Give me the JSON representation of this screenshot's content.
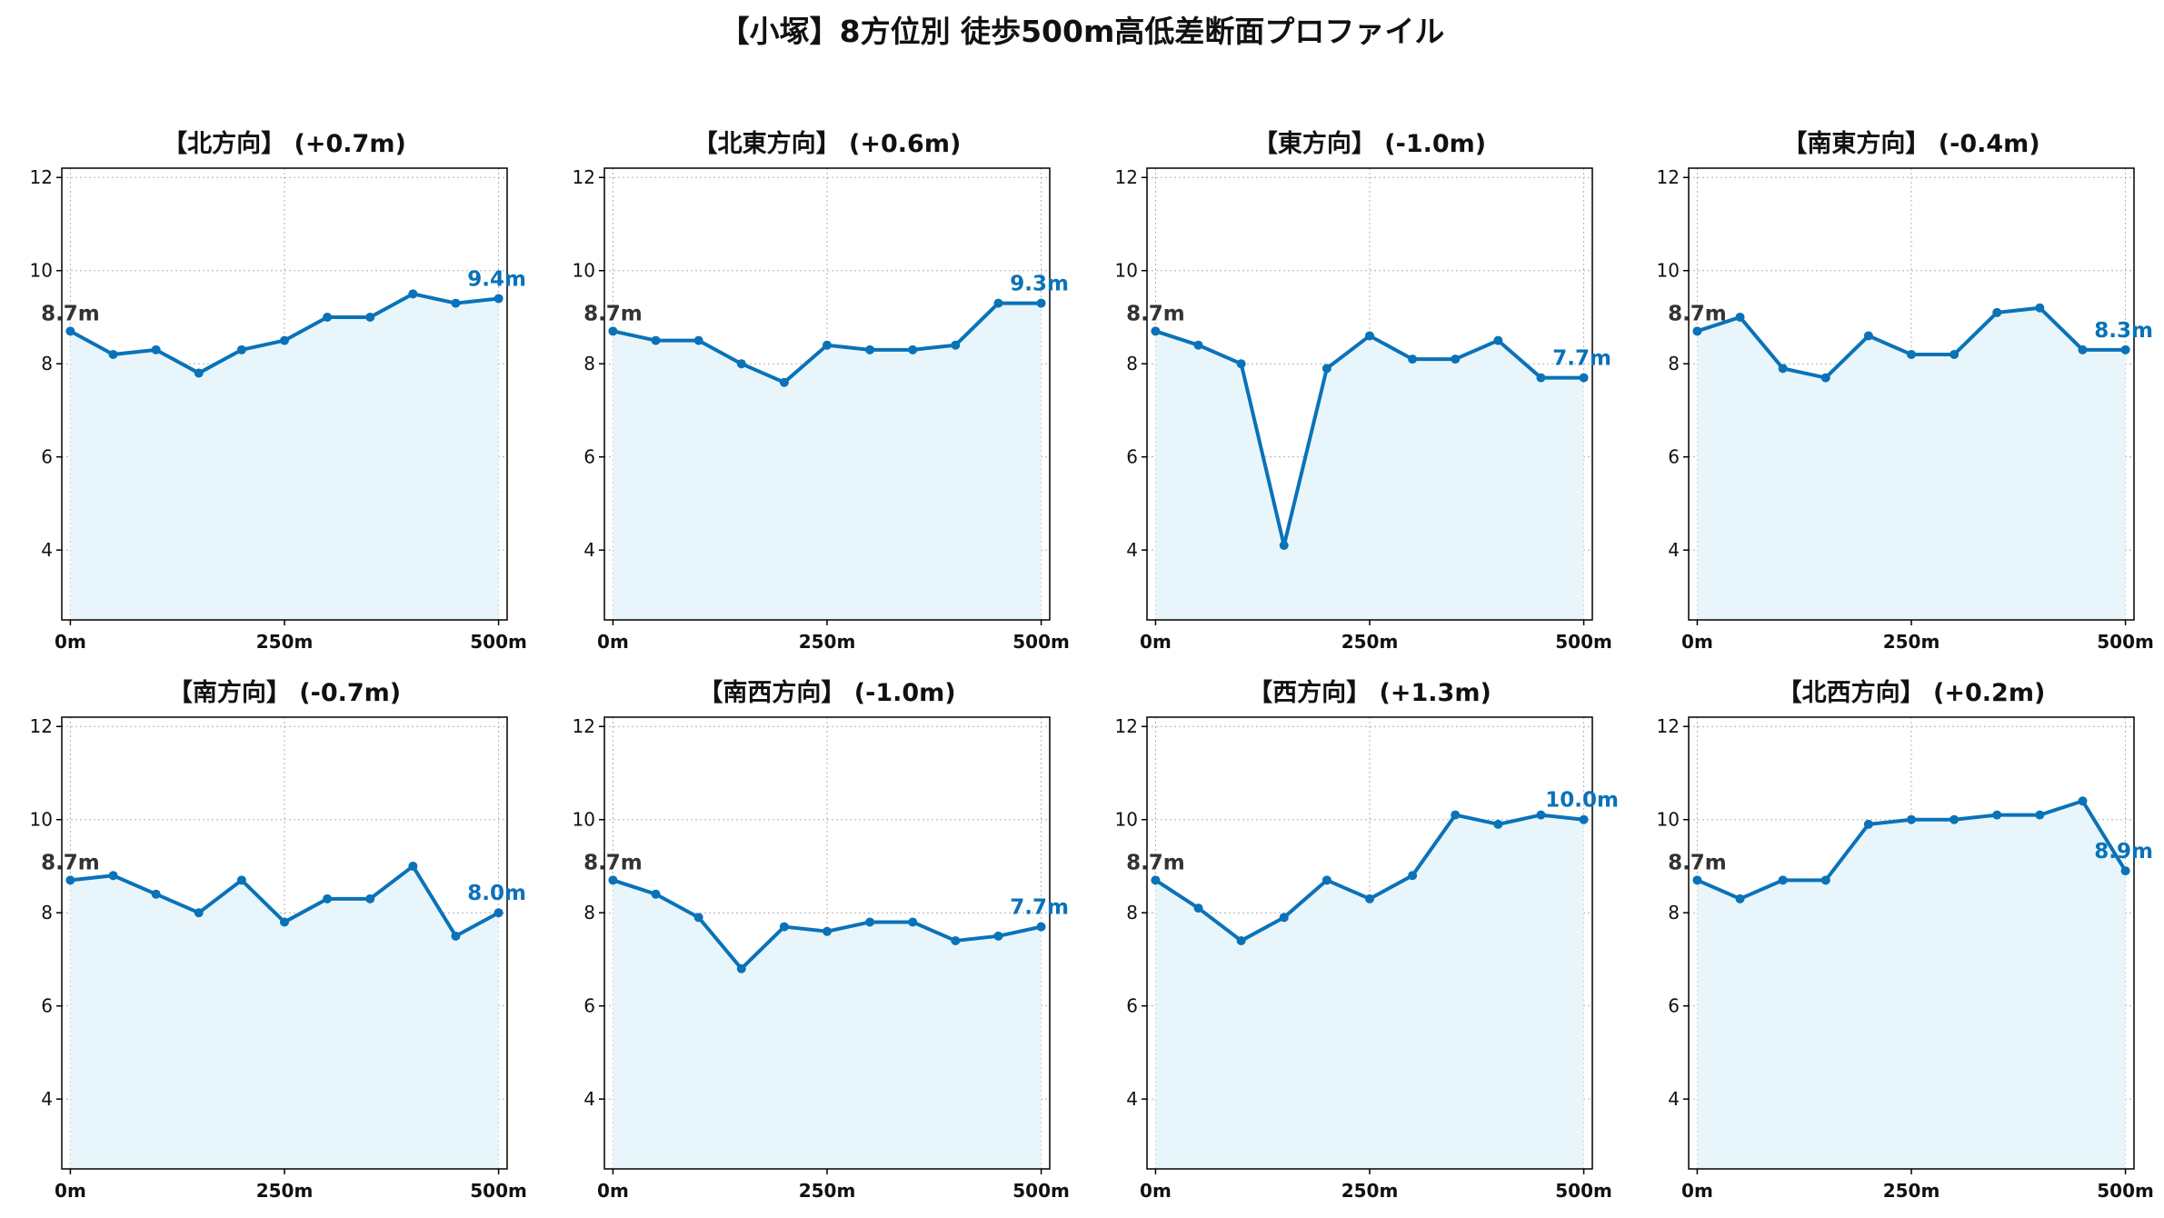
{
  "title": "【小塚】8方位別 徒歩500m高低差断面プロファイル",
  "colors": {
    "line": "#0a72b8",
    "fill": "#e8f6fb",
    "start_label": "#333333",
    "end_label": "#0a72b8",
    "grid": "#b0b0b0",
    "axis": "#000000"
  },
  "chart_data": [
    {
      "type": "area",
      "title": "【北方向】 (+0.7m)",
      "x": [
        0,
        50,
        100,
        150,
        200,
        250,
        300,
        350,
        400,
        450,
        500
      ],
      "y": [
        8.7,
        8.2,
        8.3,
        7.8,
        8.3,
        8.5,
        9.0,
        9.0,
        9.5,
        9.3,
        9.4
      ],
      "start_label": "8.7m",
      "end_label": "9.4m",
      "xticks": [
        0,
        250,
        500
      ],
      "xtick_labels": [
        "0m",
        "250m",
        "500m"
      ],
      "yticks": [
        4,
        6,
        8,
        10,
        12
      ],
      "ylim": [
        2.5,
        12.2
      ],
      "grid": true
    },
    {
      "type": "area",
      "title": "【北東方向】 (+0.6m)",
      "x": [
        0,
        50,
        100,
        150,
        200,
        250,
        300,
        350,
        400,
        450,
        500
      ],
      "y": [
        8.7,
        8.5,
        8.5,
        8.0,
        7.6,
        8.4,
        8.3,
        8.3,
        8.4,
        9.3,
        9.3
      ],
      "start_label": "8.7m",
      "end_label": "9.3m",
      "xticks": [
        0,
        250,
        500
      ],
      "xtick_labels": [
        "0m",
        "250m",
        "500m"
      ],
      "yticks": [
        4,
        6,
        8,
        10,
        12
      ],
      "ylim": [
        2.5,
        12.2
      ],
      "grid": true
    },
    {
      "type": "area",
      "title": "【東方向】 (-1.0m)",
      "x": [
        0,
        50,
        100,
        150,
        200,
        250,
        300,
        350,
        400,
        450,
        500
      ],
      "y": [
        8.7,
        8.4,
        8.0,
        4.1,
        7.9,
        8.6,
        8.1,
        8.1,
        8.5,
        7.7,
        7.7
      ],
      "start_label": "8.7m",
      "end_label": "7.7m",
      "xticks": [
        0,
        250,
        500
      ],
      "xtick_labels": [
        "0m",
        "250m",
        "500m"
      ],
      "yticks": [
        4,
        6,
        8,
        10,
        12
      ],
      "ylim": [
        2.5,
        12.2
      ],
      "grid": true
    },
    {
      "type": "area",
      "title": "【南東方向】 (-0.4m)",
      "x": [
        0,
        50,
        100,
        150,
        200,
        250,
        300,
        350,
        400,
        450,
        500
      ],
      "y": [
        8.7,
        9.0,
        7.9,
        7.7,
        8.6,
        8.2,
        8.2,
        9.1,
        9.2,
        8.3,
        8.3
      ],
      "start_label": "8.7m",
      "end_label": "8.3m",
      "xticks": [
        0,
        250,
        500
      ],
      "xtick_labels": [
        "0m",
        "250m",
        "500m"
      ],
      "yticks": [
        4,
        6,
        8,
        10,
        12
      ],
      "ylim": [
        2.5,
        12.2
      ],
      "grid": true
    },
    {
      "type": "area",
      "title": "【南方向】 (-0.7m)",
      "x": [
        0,
        50,
        100,
        150,
        200,
        250,
        300,
        350,
        400,
        450,
        500
      ],
      "y": [
        8.7,
        8.8,
        8.4,
        8.0,
        8.7,
        7.8,
        8.3,
        8.3,
        9.0,
        7.5,
        8.0
      ],
      "start_label": "8.7m",
      "end_label": "8.0m",
      "xticks": [
        0,
        250,
        500
      ],
      "xtick_labels": [
        "0m",
        "250m",
        "500m"
      ],
      "yticks": [
        4,
        6,
        8,
        10,
        12
      ],
      "ylim": [
        2.5,
        12.2
      ],
      "grid": true
    },
    {
      "type": "area",
      "title": "【南西方向】 (-1.0m)",
      "x": [
        0,
        50,
        100,
        150,
        200,
        250,
        300,
        350,
        400,
        450,
        500
      ],
      "y": [
        8.7,
        8.4,
        7.9,
        6.8,
        7.7,
        7.6,
        7.8,
        7.8,
        7.4,
        7.5,
        7.7
      ],
      "start_label": "8.7m",
      "end_label": "7.7m",
      "xticks": [
        0,
        250,
        500
      ],
      "xtick_labels": [
        "0m",
        "250m",
        "500m"
      ],
      "yticks": [
        4,
        6,
        8,
        10,
        12
      ],
      "ylim": [
        2.5,
        12.2
      ],
      "grid": true
    },
    {
      "type": "area",
      "title": "【西方向】 (+1.3m)",
      "x": [
        0,
        50,
        100,
        150,
        200,
        250,
        300,
        350,
        400,
        450,
        500
      ],
      "y": [
        8.7,
        8.1,
        7.4,
        7.9,
        8.7,
        8.3,
        8.8,
        10.1,
        9.9,
        10.1,
        10.0
      ],
      "start_label": "8.7m",
      "end_label": "10.0m",
      "xticks": [
        0,
        250,
        500
      ],
      "xtick_labels": [
        "0m",
        "250m",
        "500m"
      ],
      "yticks": [
        4,
        6,
        8,
        10,
        12
      ],
      "ylim": [
        2.5,
        12.2
      ],
      "grid": true
    },
    {
      "type": "area",
      "title": "【北西方向】 (+0.2m)",
      "x": [
        0,
        50,
        100,
        150,
        200,
        250,
        300,
        350,
        400,
        450,
        500
      ],
      "y": [
        8.7,
        8.3,
        8.7,
        8.7,
        9.9,
        10.0,
        10.0,
        10.1,
        10.1,
        10.4,
        8.9
      ],
      "start_label": "8.7m",
      "end_label": "8.9m",
      "xticks": [
        0,
        250,
        500
      ],
      "xtick_labels": [
        "0m",
        "250m",
        "500m"
      ],
      "yticks": [
        4,
        6,
        8,
        10,
        12
      ],
      "ylim": [
        2.5,
        12.2
      ],
      "grid": true
    }
  ]
}
